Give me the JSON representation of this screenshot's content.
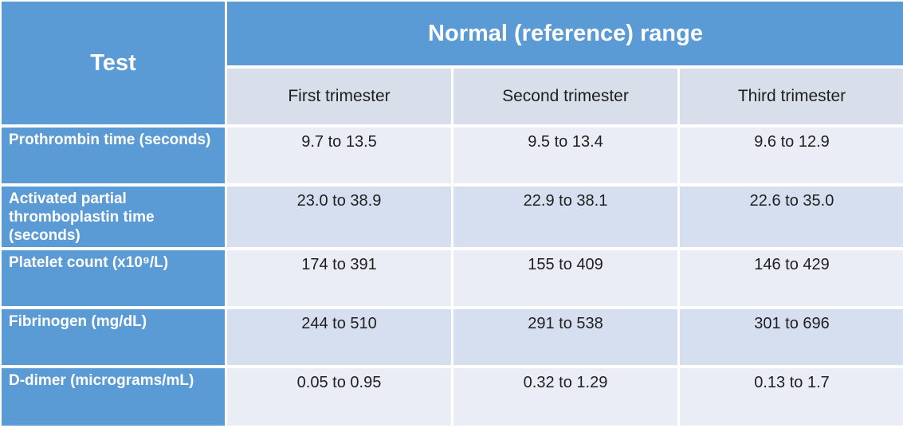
{
  "colors": {
    "header_blue": "#5B9BD5",
    "subheader_bg": "#D8DEEA",
    "row_odd_bg": "#EAEDF5",
    "row_even_bg": "#D6DFEF",
    "header_text": "#FFFFFF",
    "body_text": "#1F1F1F"
  },
  "table": {
    "test_header": "Test",
    "range_header": "Normal (reference) range",
    "trimester_headers": [
      "First trimester",
      "Second trimester",
      "Third trimester"
    ],
    "rows": [
      {
        "test": "Prothrombin time (seconds)",
        "first": "9.7 to 13.5",
        "second": "9.5 to 13.4",
        "third": "9.6 to 12.9"
      },
      {
        "test": "Activated partial thromboplastin time (seconds)",
        "first": "23.0 to 38.9",
        "second": "22.9 to 38.1",
        "third": "22.6 to 35.0"
      },
      {
        "test": "Platelet count (x10⁹/L)",
        "first": "174 to 391",
        "second": "155 to 409",
        "third": "146 to 429"
      },
      {
        "test": "Fibrinogen (mg/dL)",
        "first": "244 to 510",
        "second": "291 to 538",
        "third": "301 to 696"
      },
      {
        "test": "D-dimer (micrograms/mL)",
        "first": "0.05 to 0.95",
        "second": "0.32 to 1.29",
        "third": "0.13 to 1.7"
      }
    ]
  }
}
